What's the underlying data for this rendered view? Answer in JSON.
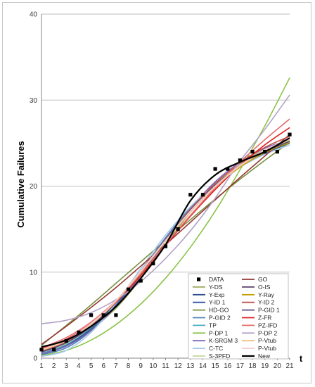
{
  "chart_data": {
    "type": "line",
    "title": "",
    "xlabel": "t",
    "ylabel": "Cumulative Failures",
    "xlim": [
      1,
      21
    ],
    "ylim": [
      0,
      40
    ],
    "xticks": [
      1,
      2,
      3,
      4,
      5,
      6,
      7,
      8,
      9,
      10,
      11,
      12,
      13,
      14,
      15,
      16,
      17,
      18,
      19,
      20,
      21
    ],
    "yticks": [
      0,
      10,
      20,
      30,
      40
    ],
    "grid": "horizontal",
    "legend_position": "bottom-right",
    "data_points": {
      "name": "DATA",
      "x": [
        1,
        2,
        3,
        4,
        5,
        6,
        7,
        8,
        9,
        10,
        11,
        12,
        13,
        14,
        15,
        16,
        17,
        18,
        19,
        20,
        21
      ],
      "y": [
        1,
        1,
        2,
        3,
        5,
        5,
        5,
        8,
        9,
        11,
        13,
        15,
        19,
        19,
        22,
        22,
        23,
        24,
        24,
        24,
        26
      ]
    },
    "series": [
      {
        "name": "Y-DS",
        "color": "#9aa85a",
        "x": [
          1,
          3,
          5,
          7,
          9,
          11,
          13,
          15,
          17,
          19,
          21
        ],
        "y": [
          1.0,
          1.6,
          3.4,
          5.8,
          9.2,
          13.1,
          17.0,
          20.3,
          22.6,
          24.2,
          25.2
        ]
      },
      {
        "name": "Y-Exp",
        "color": "#2e4f8c",
        "x": [
          1,
          3,
          5,
          7,
          9,
          11,
          13,
          15,
          17,
          19,
          21
        ],
        "y": [
          0.6,
          1.5,
          3.5,
          6.4,
          10.0,
          13.8,
          17.2,
          20.0,
          22.2,
          23.8,
          25.0
        ]
      },
      {
        "name": "Y-ID 1",
        "color": "#3050a0",
        "x": [
          1,
          3,
          5,
          7,
          9,
          11,
          13,
          15,
          17,
          19,
          21
        ],
        "y": [
          0.5,
          1.4,
          3.3,
          6.2,
          9.8,
          13.7,
          17.3,
          20.2,
          22.5,
          24.1,
          25.2
        ]
      },
      {
        "name": "HD-GO",
        "color": "#76923c",
        "x": [
          1,
          3,
          5,
          7,
          9,
          11,
          13,
          15,
          17,
          19,
          21
        ],
        "y": [
          1.5,
          3.8,
          6.2,
          8.7,
          11.2,
          13.7,
          16.1,
          18.5,
          20.8,
          23.0,
          25.1
        ]
      },
      {
        "name": "P-GID 2",
        "color": "#4f81bd",
        "x": [
          1,
          3,
          5,
          7,
          9,
          11,
          13,
          15,
          17,
          19,
          21
        ],
        "y": [
          0.4,
          1.2,
          3.2,
          6.3,
          10.1,
          14.0,
          17.5,
          20.3,
          22.5,
          24.0,
          25.1
        ]
      },
      {
        "name": "TP",
        "color": "#4bacc6",
        "x": [
          1,
          3,
          5,
          7,
          9,
          11,
          13,
          15,
          17,
          19,
          21
        ],
        "y": [
          0.6,
          1.6,
          3.6,
          6.5,
          10.0,
          13.7,
          17.2,
          20.1,
          22.4,
          24.1,
          25.3
        ]
      },
      {
        "name": "P-DP 1",
        "color": "#8bc34a",
        "x": [
          1,
          3,
          5,
          7,
          9,
          11,
          13,
          15,
          17,
          19,
          21
        ],
        "y": [
          0.3,
          0.9,
          2.1,
          3.9,
          6.3,
          9.3,
          12.9,
          17.1,
          21.9,
          27.0,
          32.6
        ]
      },
      {
        "name": "K-SRGM 3",
        "color": "#7b68b5",
        "x": [
          1,
          3,
          5,
          7,
          9,
          11,
          13,
          15,
          17,
          19,
          21
        ],
        "y": [
          0.5,
          1.4,
          3.2,
          6.0,
          9.6,
          13.6,
          17.4,
          20.5,
          22.8,
          24.4,
          25.4
        ]
      },
      {
        "name": "C-TC",
        "color": "#a4c8e8",
        "x": [
          1,
          3,
          5,
          7,
          9,
          11,
          13,
          15,
          17,
          19,
          21
        ],
        "y": [
          0.2,
          0.9,
          3.0,
          6.4,
          10.4,
          14.3,
          17.6,
          20.2,
          22.2,
          23.7,
          24.8
        ]
      },
      {
        "name": "S-3PFD",
        "color": "#c4d79b",
        "x": [
          1,
          3,
          5,
          7,
          9,
          11,
          13,
          15,
          17,
          19,
          21
        ],
        "y": [
          0.7,
          1.7,
          3.7,
          6.6,
          10.1,
          13.8,
          17.3,
          20.2,
          22.5,
          24.1,
          25.2
        ]
      },
      {
        "name": "GO",
        "color": "#953735",
        "x": [
          1,
          3,
          5,
          7,
          9,
          11,
          13,
          15,
          17,
          19,
          21
        ],
        "y": [
          1.6,
          3.7,
          5.9,
          8.2,
          10.7,
          13.2,
          15.8,
          18.4,
          21.0,
          23.5,
          26.0
        ]
      },
      {
        "name": "O-IS",
        "color": "#5a3e6e",
        "x": [
          1,
          3,
          5,
          7,
          9,
          11,
          13,
          15,
          17,
          19,
          21
        ],
        "y": [
          0.8,
          1.8,
          3.7,
          6.5,
          10.0,
          13.7,
          17.2,
          20.1,
          22.4,
          24.0,
          25.1
        ]
      },
      {
        "name": "Y-Ray",
        "color": "#c0a000",
        "x": [
          1,
          3,
          5,
          7,
          9,
          11,
          13,
          15,
          17,
          19,
          21
        ],
        "y": [
          0.9,
          2.0,
          3.9,
          6.6,
          10.0,
          13.6,
          17.0,
          19.9,
          22.2,
          23.9,
          25.1
        ]
      },
      {
        "name": "Y-ID 2",
        "color": "#c0504d",
        "x": [
          1,
          3,
          5,
          7,
          9,
          11,
          13,
          15,
          17,
          19,
          21
        ],
        "y": [
          0.8,
          1.9,
          3.8,
          6.6,
          10.1,
          13.8,
          17.3,
          20.3,
          22.7,
          24.5,
          25.8
        ]
      },
      {
        "name": "P-GID 1",
        "color": "#604a7b",
        "x": [
          1,
          3,
          5,
          7,
          9,
          11,
          13,
          15,
          17,
          19,
          21
        ],
        "y": [
          0.7,
          1.8,
          3.8,
          6.6,
          10.1,
          13.8,
          17.2,
          20.1,
          22.4,
          24.0,
          25.2
        ]
      },
      {
        "name": "Z-FR",
        "color": "#e02020",
        "x": [
          1,
          3,
          5,
          7,
          9,
          11,
          13,
          15,
          17,
          19,
          21
        ],
        "y": [
          1.1,
          2.2,
          4.0,
          6.5,
          9.6,
          13.1,
          16.5,
          19.6,
          22.4,
          24.8,
          26.8
        ]
      },
      {
        "name": "PZ-IFD",
        "color": "#e46c6c",
        "x": [
          1,
          3,
          5,
          7,
          9,
          11,
          13,
          15,
          17,
          19,
          21
        ],
        "y": [
          1.2,
          2.4,
          4.2,
          6.7,
          9.8,
          13.2,
          16.6,
          19.8,
          22.8,
          25.4,
          27.8
        ]
      },
      {
        "name": "P-DP 2",
        "color": "#b3a2c7",
        "x": [
          1,
          3,
          5,
          7,
          9,
          11,
          13,
          15,
          17,
          19,
          21
        ],
        "y": [
          4.0,
          4.4,
          5.3,
          6.8,
          8.9,
          11.6,
          14.8,
          18.6,
          22.9,
          26.6,
          30.6
        ]
      },
      {
        "name": "P-Vtub",
        "color": "#f0c080",
        "x": [
          1,
          3,
          5,
          7,
          9,
          11,
          13,
          15,
          17,
          19,
          21
        ],
        "y": [
          0.9,
          2.0,
          3.9,
          6.6,
          10.0,
          13.6,
          17.0,
          19.9,
          22.3,
          24.1,
          25.4
        ]
      },
      {
        "name": "P-Vtub",
        "color": "#f4cccc",
        "x": [
          1,
          3,
          5,
          7,
          9,
          11,
          13,
          15,
          17,
          19,
          21
        ],
        "y": [
          1.0,
          2.1,
          4.0,
          6.7,
          10.1,
          13.7,
          17.1,
          20.0,
          22.4,
          24.2,
          25.5
        ]
      },
      {
        "name": "New",
        "color": "#000000",
        "x": [
          1,
          3,
          5,
          7,
          9,
          11,
          13,
          15,
          17,
          19,
          21
        ],
        "y": [
          1.3,
          2.1,
          3.7,
          6.0,
          9.3,
          13.2,
          18.3,
          21.3,
          22.8,
          24.0,
          25.6
        ]
      }
    ]
  }
}
